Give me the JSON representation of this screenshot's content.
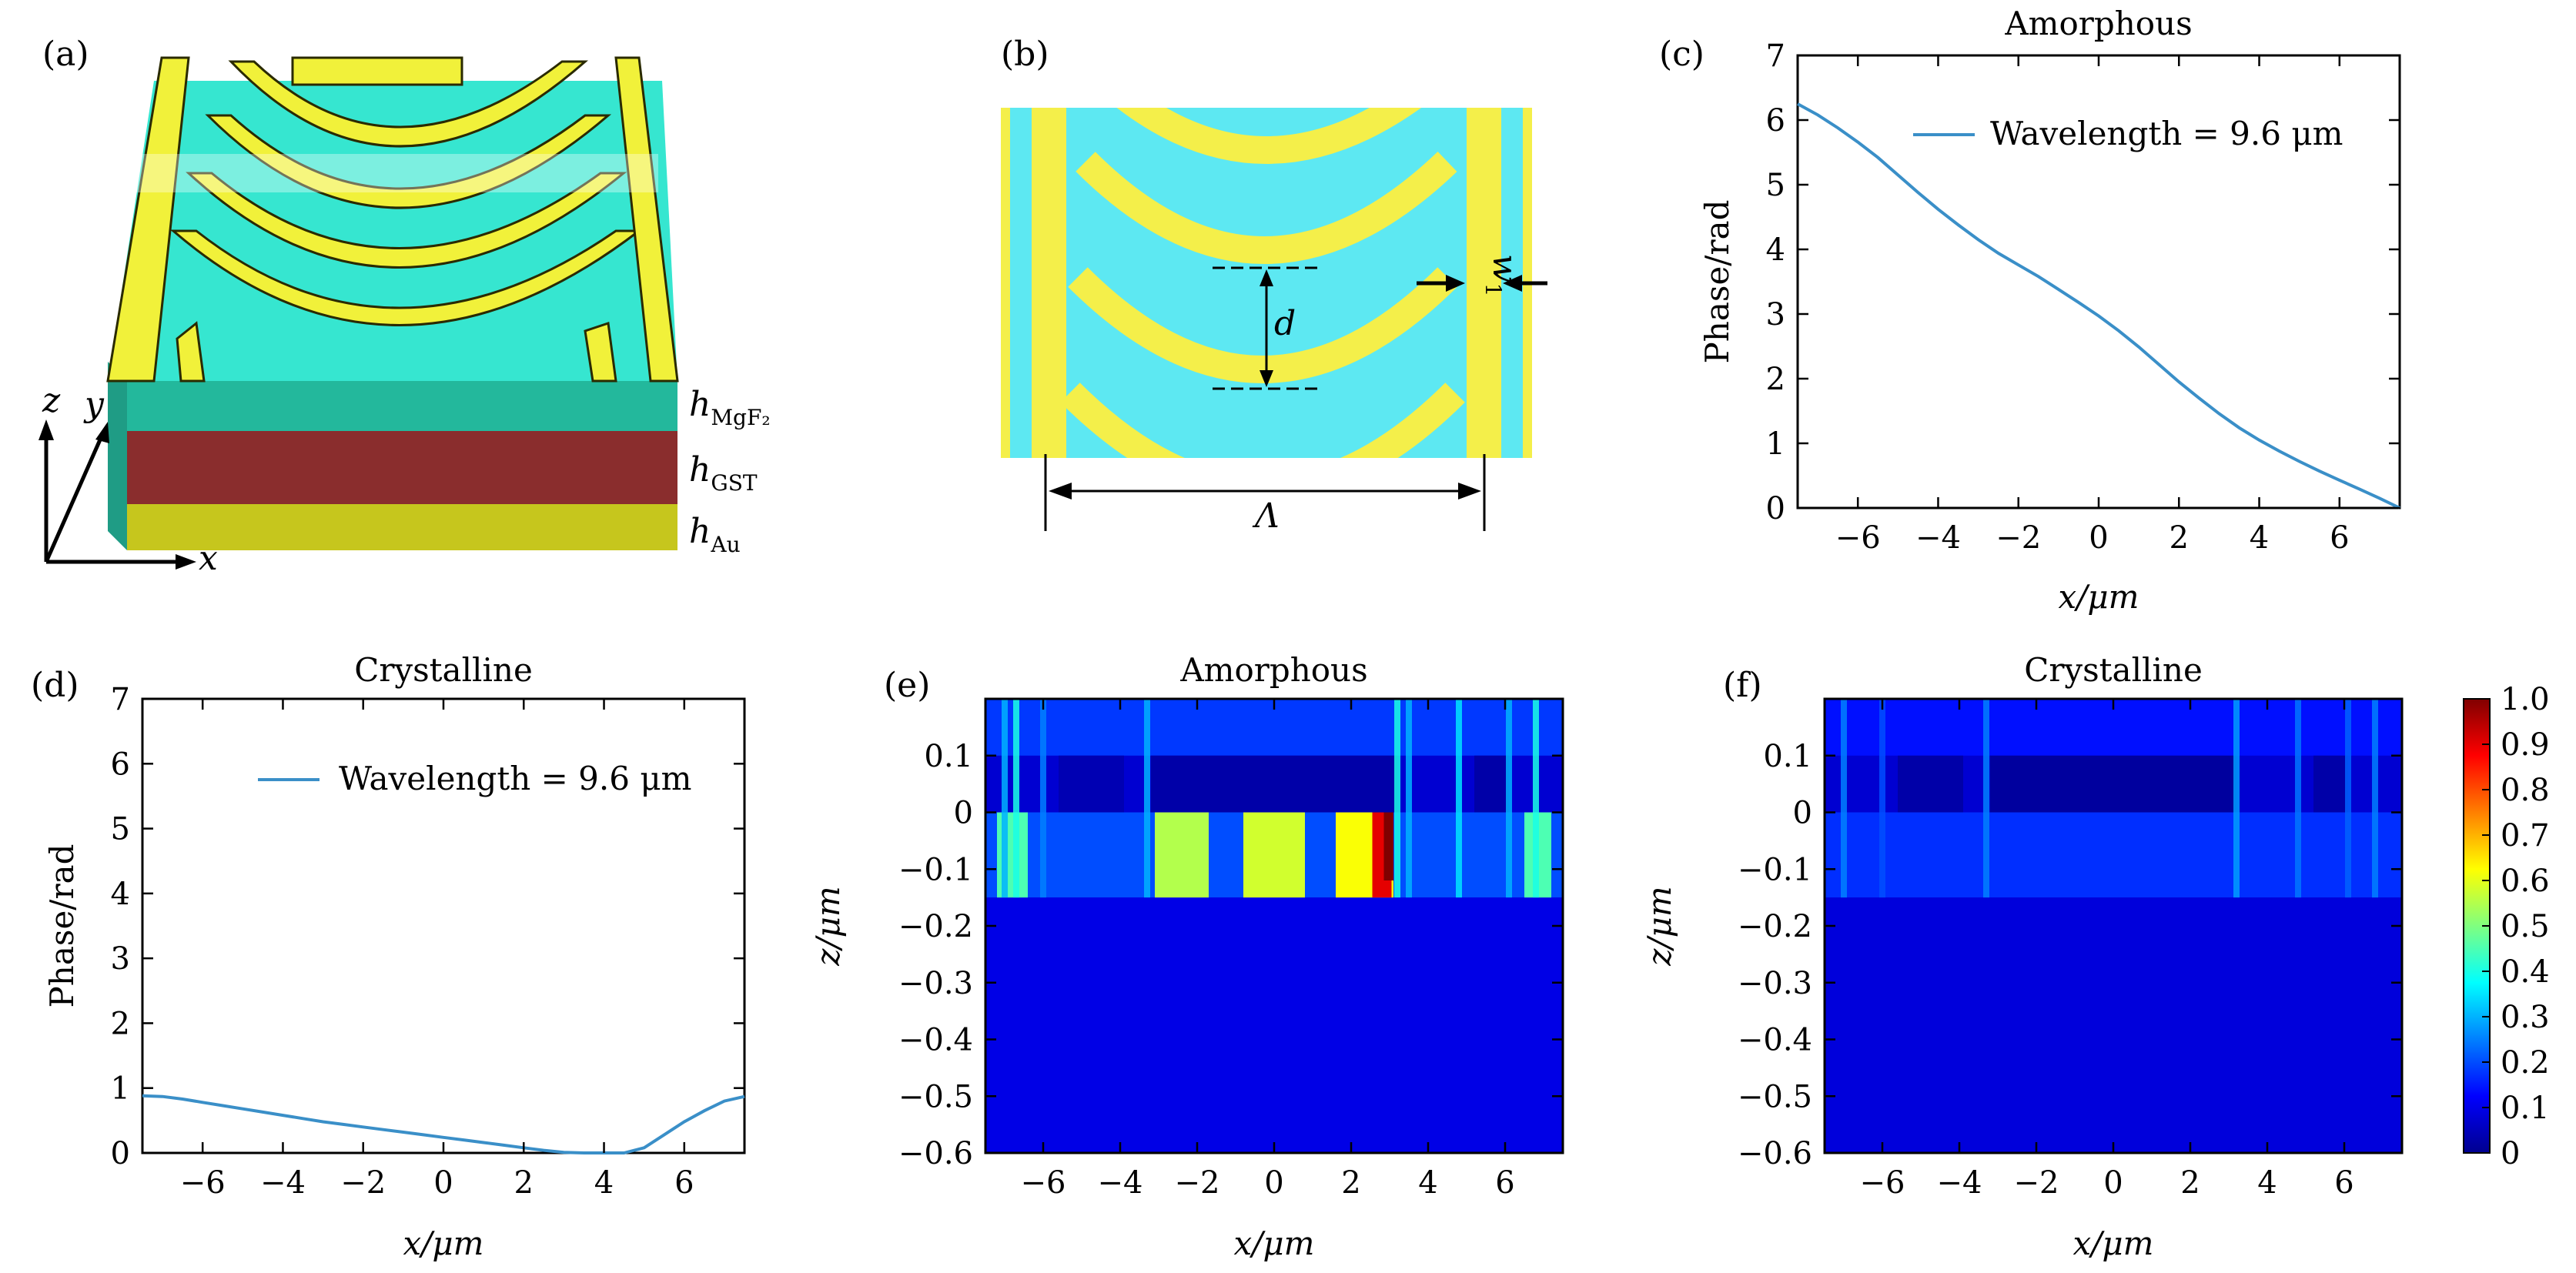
{
  "panels": {
    "a": {
      "label": "(a)",
      "layer_labels": [
        {
          "main": "h",
          "sub": "MgF₂"
        },
        {
          "main": "h",
          "sub": "GST"
        },
        {
          "main": "h",
          "sub": "Au"
        }
      ],
      "axis_labels": [
        "z",
        "y",
        "x"
      ],
      "colors": {
        "stripe": "#f1f13a",
        "substrate_top": "#36e6d0",
        "mgf2": "#23b89c",
        "gst": "#8a2d2d",
        "au": "#c6c61d"
      }
    },
    "b": {
      "label": "(b)",
      "dimension_labels": {
        "d": "d",
        "period": "Λ",
        "w_main": "w",
        "w_sub": "1"
      },
      "colors": {
        "background": "#5de8f2",
        "stripe": "#f4ef4a"
      }
    },
    "c": {
      "label": "(c)"
    },
    "d": {
      "label": "(d)"
    },
    "e": {
      "label": "(e)"
    },
    "f": {
      "label": "(f)"
    },
    "colorbar": {
      "ticks": [
        "1.0",
        "0.9",
        "0.8",
        "0.7",
        "0.6",
        "0.5",
        "0.4",
        "0.3",
        "0.2",
        "0.1",
        "0"
      ],
      "colormap": "jet"
    }
  },
  "chart_data": [
    {
      "id": "c",
      "type": "line",
      "title": "Amorphous",
      "xlabel": "x/μm",
      "ylabel": "Phase/rad",
      "xlim": [
        -7.5,
        7.5
      ],
      "ylim": [
        0,
        7
      ],
      "xticks": [
        "−6",
        "−4",
        "−2",
        "0",
        "2",
        "4",
        "6"
      ],
      "yticks": [
        "0",
        "1",
        "2",
        "3",
        "4",
        "5",
        "6",
        "7"
      ],
      "legend": {
        "label": "Wavelength = 9.6 μm",
        "position": "top-right"
      },
      "series": [
        {
          "name": "Wavelength = 9.6 μm",
          "color": "#3a8fc8",
          "x": [
            -7.5,
            -7,
            -6.5,
            -6,
            -5.5,
            -5,
            -4.5,
            -4,
            -3.5,
            -3,
            -2.5,
            -2,
            -1.5,
            -1,
            -0.5,
            0,
            0.5,
            1,
            1.5,
            2,
            2.5,
            3,
            3.5,
            4,
            4.5,
            5,
            5.5,
            6,
            6.5,
            7,
            7.5
          ],
          "y": [
            6.25,
            6.08,
            5.88,
            5.66,
            5.42,
            5.15,
            4.88,
            4.62,
            4.38,
            4.15,
            3.94,
            3.76,
            3.58,
            3.38,
            3.18,
            2.97,
            2.74,
            2.49,
            2.22,
            1.95,
            1.7,
            1.46,
            1.24,
            1.05,
            0.88,
            0.72,
            0.57,
            0.43,
            0.29,
            0.15,
            0.0
          ]
        }
      ]
    },
    {
      "id": "d",
      "type": "line",
      "title": "Crystalline",
      "xlabel": "x/μm",
      "ylabel": "Phase/rad",
      "xlim": [
        -7.5,
        7.5
      ],
      "ylim": [
        0,
        7
      ],
      "xticks": [
        "−6",
        "−4",
        "−2",
        "0",
        "2",
        "4",
        "6"
      ],
      "yticks": [
        "0",
        "1",
        "2",
        "3",
        "4",
        "5",
        "6",
        "7"
      ],
      "legend": {
        "label": "Wavelength = 9.6 μm",
        "position": "top-right"
      },
      "series": [
        {
          "name": "Wavelength = 9.6 μm",
          "color": "#3a8fc8",
          "x": [
            -7.5,
            -7,
            -6.5,
            -6,
            -5.5,
            -5,
            -4.5,
            -4,
            -3.5,
            -3,
            -2.5,
            -2,
            -1.5,
            -1,
            -0.5,
            0,
            0.5,
            1,
            1.5,
            2,
            2.5,
            3,
            3.5,
            4,
            4.5,
            5,
            5.5,
            6,
            6.5,
            7,
            7.5
          ],
          "y": [
            0.88,
            0.87,
            0.83,
            0.78,
            0.73,
            0.68,
            0.63,
            0.58,
            0.53,
            0.48,
            0.44,
            0.4,
            0.36,
            0.32,
            0.28,
            0.24,
            0.2,
            0.16,
            0.12,
            0.08,
            0.04,
            0.01,
            0.0,
            0.0,
            0.0,
            0.08,
            0.28,
            0.48,
            0.65,
            0.8,
            0.87
          ]
        }
      ]
    },
    {
      "id": "e",
      "type": "heatmap",
      "title": "Amorphous",
      "xlabel": "x/μm",
      "ylabel": "z/μm",
      "xlim": [
        -7.5,
        7.5
      ],
      "ylim": [
        -0.6,
        0.2
      ],
      "zlim": [
        0,
        1
      ],
      "xticks": [
        "−6",
        "−4",
        "−2",
        "0",
        "2",
        "4",
        "6"
      ],
      "yticks": [
        "0.1",
        "0",
        "−0.1",
        "−0.2",
        "−0.3",
        "−0.4",
        "−0.5",
        "−0.6"
      ],
      "background": 0.08,
      "bands": [
        {
          "z": [
            0.1,
            0.2
          ],
          "value": 0.18
        },
        {
          "z": [
            -0.15,
            0.0
          ],
          "value": 0.2
        },
        {
          "z": [
            -0.6,
            -0.15
          ],
          "value": 0.1
        }
      ],
      "blocks": [
        {
          "x": [
            -3.2,
            3.2
          ],
          "z": [
            0.0,
            0.1
          ],
          "value": 0.04
        },
        {
          "x": [
            5.2,
            6.1
          ],
          "z": [
            0.0,
            0.1
          ],
          "value": 0.04
        },
        {
          "x": [
            -5.6,
            -3.9
          ],
          "z": [
            0.0,
            0.1
          ],
          "value": 0.05
        },
        {
          "x": [
            -3.1,
            -1.7
          ],
          "z": [
            -0.15,
            0.0
          ],
          "value": 0.55
        },
        {
          "x": [
            -0.8,
            0.8
          ],
          "z": [
            -0.15,
            0.0
          ],
          "value": 0.58
        },
        {
          "x": [
            1.6,
            3.1
          ],
          "z": [
            -0.15,
            0.0
          ],
          "value": 0.62
        },
        {
          "x": [
            2.55,
            3.05
          ],
          "z": [
            -0.15,
            0.0
          ],
          "value": 0.9
        },
        {
          "x": [
            2.85,
            3.1
          ],
          "z": [
            -0.12,
            0.0
          ],
          "value": 1.0
        },
        {
          "x": [
            -7.2,
            -6.4
          ],
          "z": [
            -0.15,
            0.0
          ],
          "value": 0.45
        },
        {
          "x": [
            6.5,
            7.2
          ],
          "z": [
            -0.15,
            0.0
          ],
          "value": 0.45
        }
      ],
      "lines": [
        {
          "x": -7.0,
          "value": 0.3
        },
        {
          "x": -6.7,
          "value": 0.4
        },
        {
          "x": -6.0,
          "value": 0.25
        },
        {
          "x": -3.3,
          "value": 0.3
        },
        {
          "x": 3.2,
          "value": 0.4
        },
        {
          "x": 3.5,
          "value": 0.3
        },
        {
          "x": 4.8,
          "value": 0.35
        },
        {
          "x": 6.1,
          "value": 0.3
        },
        {
          "x": 6.8,
          "value": 0.4
        }
      ]
    },
    {
      "id": "f",
      "type": "heatmap",
      "title": "Crystalline",
      "xlabel": "x/μm",
      "ylabel": "z/μm",
      "xlim": [
        -7.5,
        7.5
      ],
      "ylim": [
        -0.6,
        0.2
      ],
      "zlim": [
        0,
        1
      ],
      "xticks": [
        "−6",
        "−4",
        "−2",
        "0",
        "2",
        "4",
        "6"
      ],
      "yticks": [
        "0.1",
        "0",
        "−0.1",
        "−0.2",
        "−0.3",
        "−0.4",
        "−0.5",
        "−0.6"
      ],
      "background": 0.08,
      "bands": [
        {
          "z": [
            0.1,
            0.2
          ],
          "value": 0.14
        },
        {
          "z": [
            -0.15,
            0.0
          ],
          "value": 0.17
        },
        {
          "z": [
            -0.6,
            -0.15
          ],
          "value": 0.09
        }
      ],
      "blocks": [
        {
          "x": [
            -3.2,
            3.2
          ],
          "z": [
            0.0,
            0.1
          ],
          "value": 0.03
        },
        {
          "x": [
            -5.6,
            -3.9
          ],
          "z": [
            0.0,
            0.1
          ],
          "value": 0.04
        },
        {
          "x": [
            5.2,
            6.1
          ],
          "z": [
            0.0,
            0.1
          ],
          "value": 0.04
        }
      ],
      "lines": [
        {
          "x": -7.0,
          "value": 0.25
        },
        {
          "x": -6.0,
          "value": 0.2
        },
        {
          "x": -3.3,
          "value": 0.25
        },
        {
          "x": 3.2,
          "value": 0.28
        },
        {
          "x": 4.8,
          "value": 0.24
        },
        {
          "x": 6.1,
          "value": 0.22
        },
        {
          "x": 6.8,
          "value": 0.25
        }
      ]
    }
  ]
}
